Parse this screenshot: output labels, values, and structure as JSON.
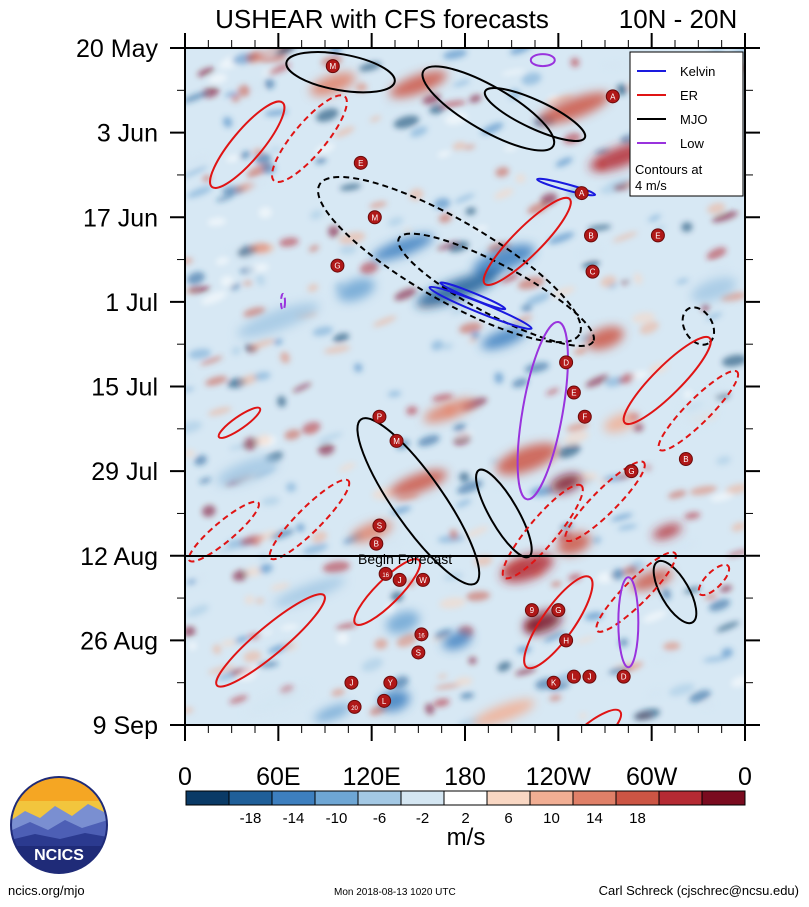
{
  "chart_data": {
    "type": "heatmap",
    "title": "USHEAR with CFS forecasts",
    "region": "10N - 20N",
    "y_tick_labels": [
      "20 May",
      "3 Jun",
      "17 Jun",
      "1 Jul",
      "15 Jul",
      "29 Jul",
      "12 Aug",
      "26 Aug",
      "9 Sep"
    ],
    "x_tick_labels": [
      "0",
      "60E",
      "120E",
      "180",
      "120W",
      "60W",
      "0"
    ],
    "x_range_deg_east": [
      0,
      360
    ],
    "forecast_start_label": "Begin Forecast",
    "forecast_start_date": "12 Aug",
    "colorbar": {
      "unit_label": "m/s",
      "tick_labels": [
        "-18",
        "-14",
        "-10",
        "-6",
        "-2",
        "2",
        "6",
        "10",
        "14",
        "18"
      ],
      "colors": [
        "#0a3a66",
        "#1f5f99",
        "#3d7fbf",
        "#6ea6d4",
        "#a3c8e4",
        "#d4e6f2",
        "#ffffff",
        "#f9d7c3",
        "#f1ae93",
        "#e08068",
        "#cc5544",
        "#b52a33",
        "#7a0b1f"
      ]
    },
    "legend": {
      "position": "top-right",
      "entries": [
        {
          "label": "Kelvin",
          "color": "#1a1adf"
        },
        {
          "label": "ER",
          "color": "#e01414"
        },
        {
          "label": "MJO",
          "color": "#000000"
        },
        {
          "label": "Low",
          "color": "#9933dd"
        }
      ],
      "note_line1": "Contours at",
      "note_line2": "4 m/s"
    },
    "storm_markers": [
      {
        "lon": 95,
        "day": 3,
        "label": "M"
      },
      {
        "lon": 275,
        "day": 8,
        "label": "A"
      },
      {
        "lon": 113,
        "day": 19,
        "label": "E"
      },
      {
        "lon": 255,
        "day": 24,
        "label": "A"
      },
      {
        "lon": 122,
        "day": 28,
        "label": "M"
      },
      {
        "lon": 261,
        "day": 31,
        "label": "B"
      },
      {
        "lon": 304,
        "day": 31,
        "label": "E"
      },
      {
        "lon": 98,
        "day": 36,
        "label": "G"
      },
      {
        "lon": 262,
        "day": 37,
        "label": "C"
      },
      {
        "lon": 245,
        "day": 52,
        "label": "D"
      },
      {
        "lon": 250,
        "day": 57,
        "label": "E"
      },
      {
        "lon": 257,
        "day": 61,
        "label": "F"
      },
      {
        "lon": 125,
        "day": 61,
        "label": "P"
      },
      {
        "lon": 136,
        "day": 65,
        "label": "M"
      },
      {
        "lon": 322,
        "day": 68,
        "label": "B"
      },
      {
        "lon": 287,
        "day": 70,
        "label": "G"
      },
      {
        "lon": 125,
        "day": 79,
        "label": "S"
      },
      {
        "lon": 123,
        "day": 82,
        "label": "B"
      },
      {
        "lon": 129,
        "day": 87,
        "label": "16"
      },
      {
        "lon": 138,
        "day": 88,
        "label": "J"
      },
      {
        "lon": 153,
        "day": 88,
        "label": "W"
      },
      {
        "lon": 223,
        "day": 93,
        "label": "9"
      },
      {
        "lon": 240,
        "day": 93,
        "label": "G"
      },
      {
        "lon": 152,
        "day": 97,
        "label": "16"
      },
      {
        "lon": 150,
        "day": 100,
        "label": "S"
      },
      {
        "lon": 245,
        "day": 98,
        "label": "H"
      },
      {
        "lon": 260,
        "day": 104,
        "label": "J"
      },
      {
        "lon": 282,
        "day": 104,
        "label": "D"
      },
      {
        "lon": 107,
        "day": 105,
        "label": "J"
      },
      {
        "lon": 132,
        "day": 105,
        "label": "Y"
      },
      {
        "lon": 237,
        "day": 105,
        "label": "K"
      },
      {
        "lon": 250,
        "day": 104,
        "label": "L"
      },
      {
        "lon": 128,
        "day": 108,
        "label": "L"
      },
      {
        "lon": 109,
        "day": 109,
        "label": "20"
      }
    ]
  },
  "footer": {
    "website": "ncics.org/mjo",
    "timestamp": "Mon 2018-08-13 1020 UTC",
    "author": "Carl Schreck (cjschrec@ncsu.edu)",
    "logo_text": "NCICS"
  }
}
